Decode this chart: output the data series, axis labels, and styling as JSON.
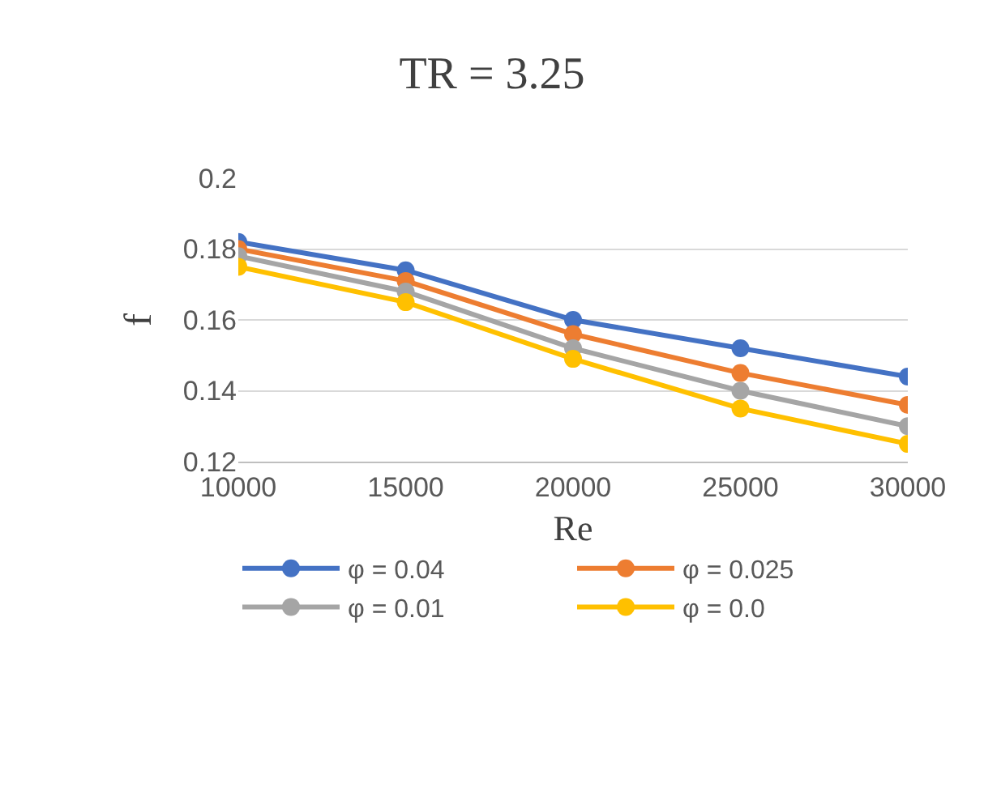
{
  "chart_data": {
    "type": "line",
    "title": "TR = 3.25",
    "xlabel": "Re",
    "ylabel": "f",
    "x": [
      10000,
      15000,
      20000,
      25000,
      30000
    ],
    "xlim": [
      10000,
      30000
    ],
    "xticks": [
      10000,
      15000,
      20000,
      25000,
      30000
    ],
    "ylim": [
      0.12,
      0.2
    ],
    "yticks": [
      0.12,
      0.14,
      0.16,
      0.18,
      0.2
    ],
    "grid": "y",
    "legend": "bottom",
    "marker": "circle",
    "line_style": "solid",
    "series": [
      {
        "name": "φ = 0.04",
        "color": "#4472c4",
        "values": [
          0.182,
          0.174,
          0.16,
          0.152,
          0.144
        ]
      },
      {
        "name": "φ = 0.025",
        "color": "#ed7d31",
        "values": [
          0.18,
          0.171,
          0.156,
          0.145,
          0.136
        ]
      },
      {
        "name": "φ = 0.01",
        "color": "#a5a5a5",
        "values": [
          0.178,
          0.168,
          0.152,
          0.14,
          0.13
        ]
      },
      {
        "name": "φ = 0.0",
        "color": "#ffc000",
        "values": [
          0.175,
          0.165,
          0.149,
          0.135,
          0.125
        ]
      }
    ]
  }
}
